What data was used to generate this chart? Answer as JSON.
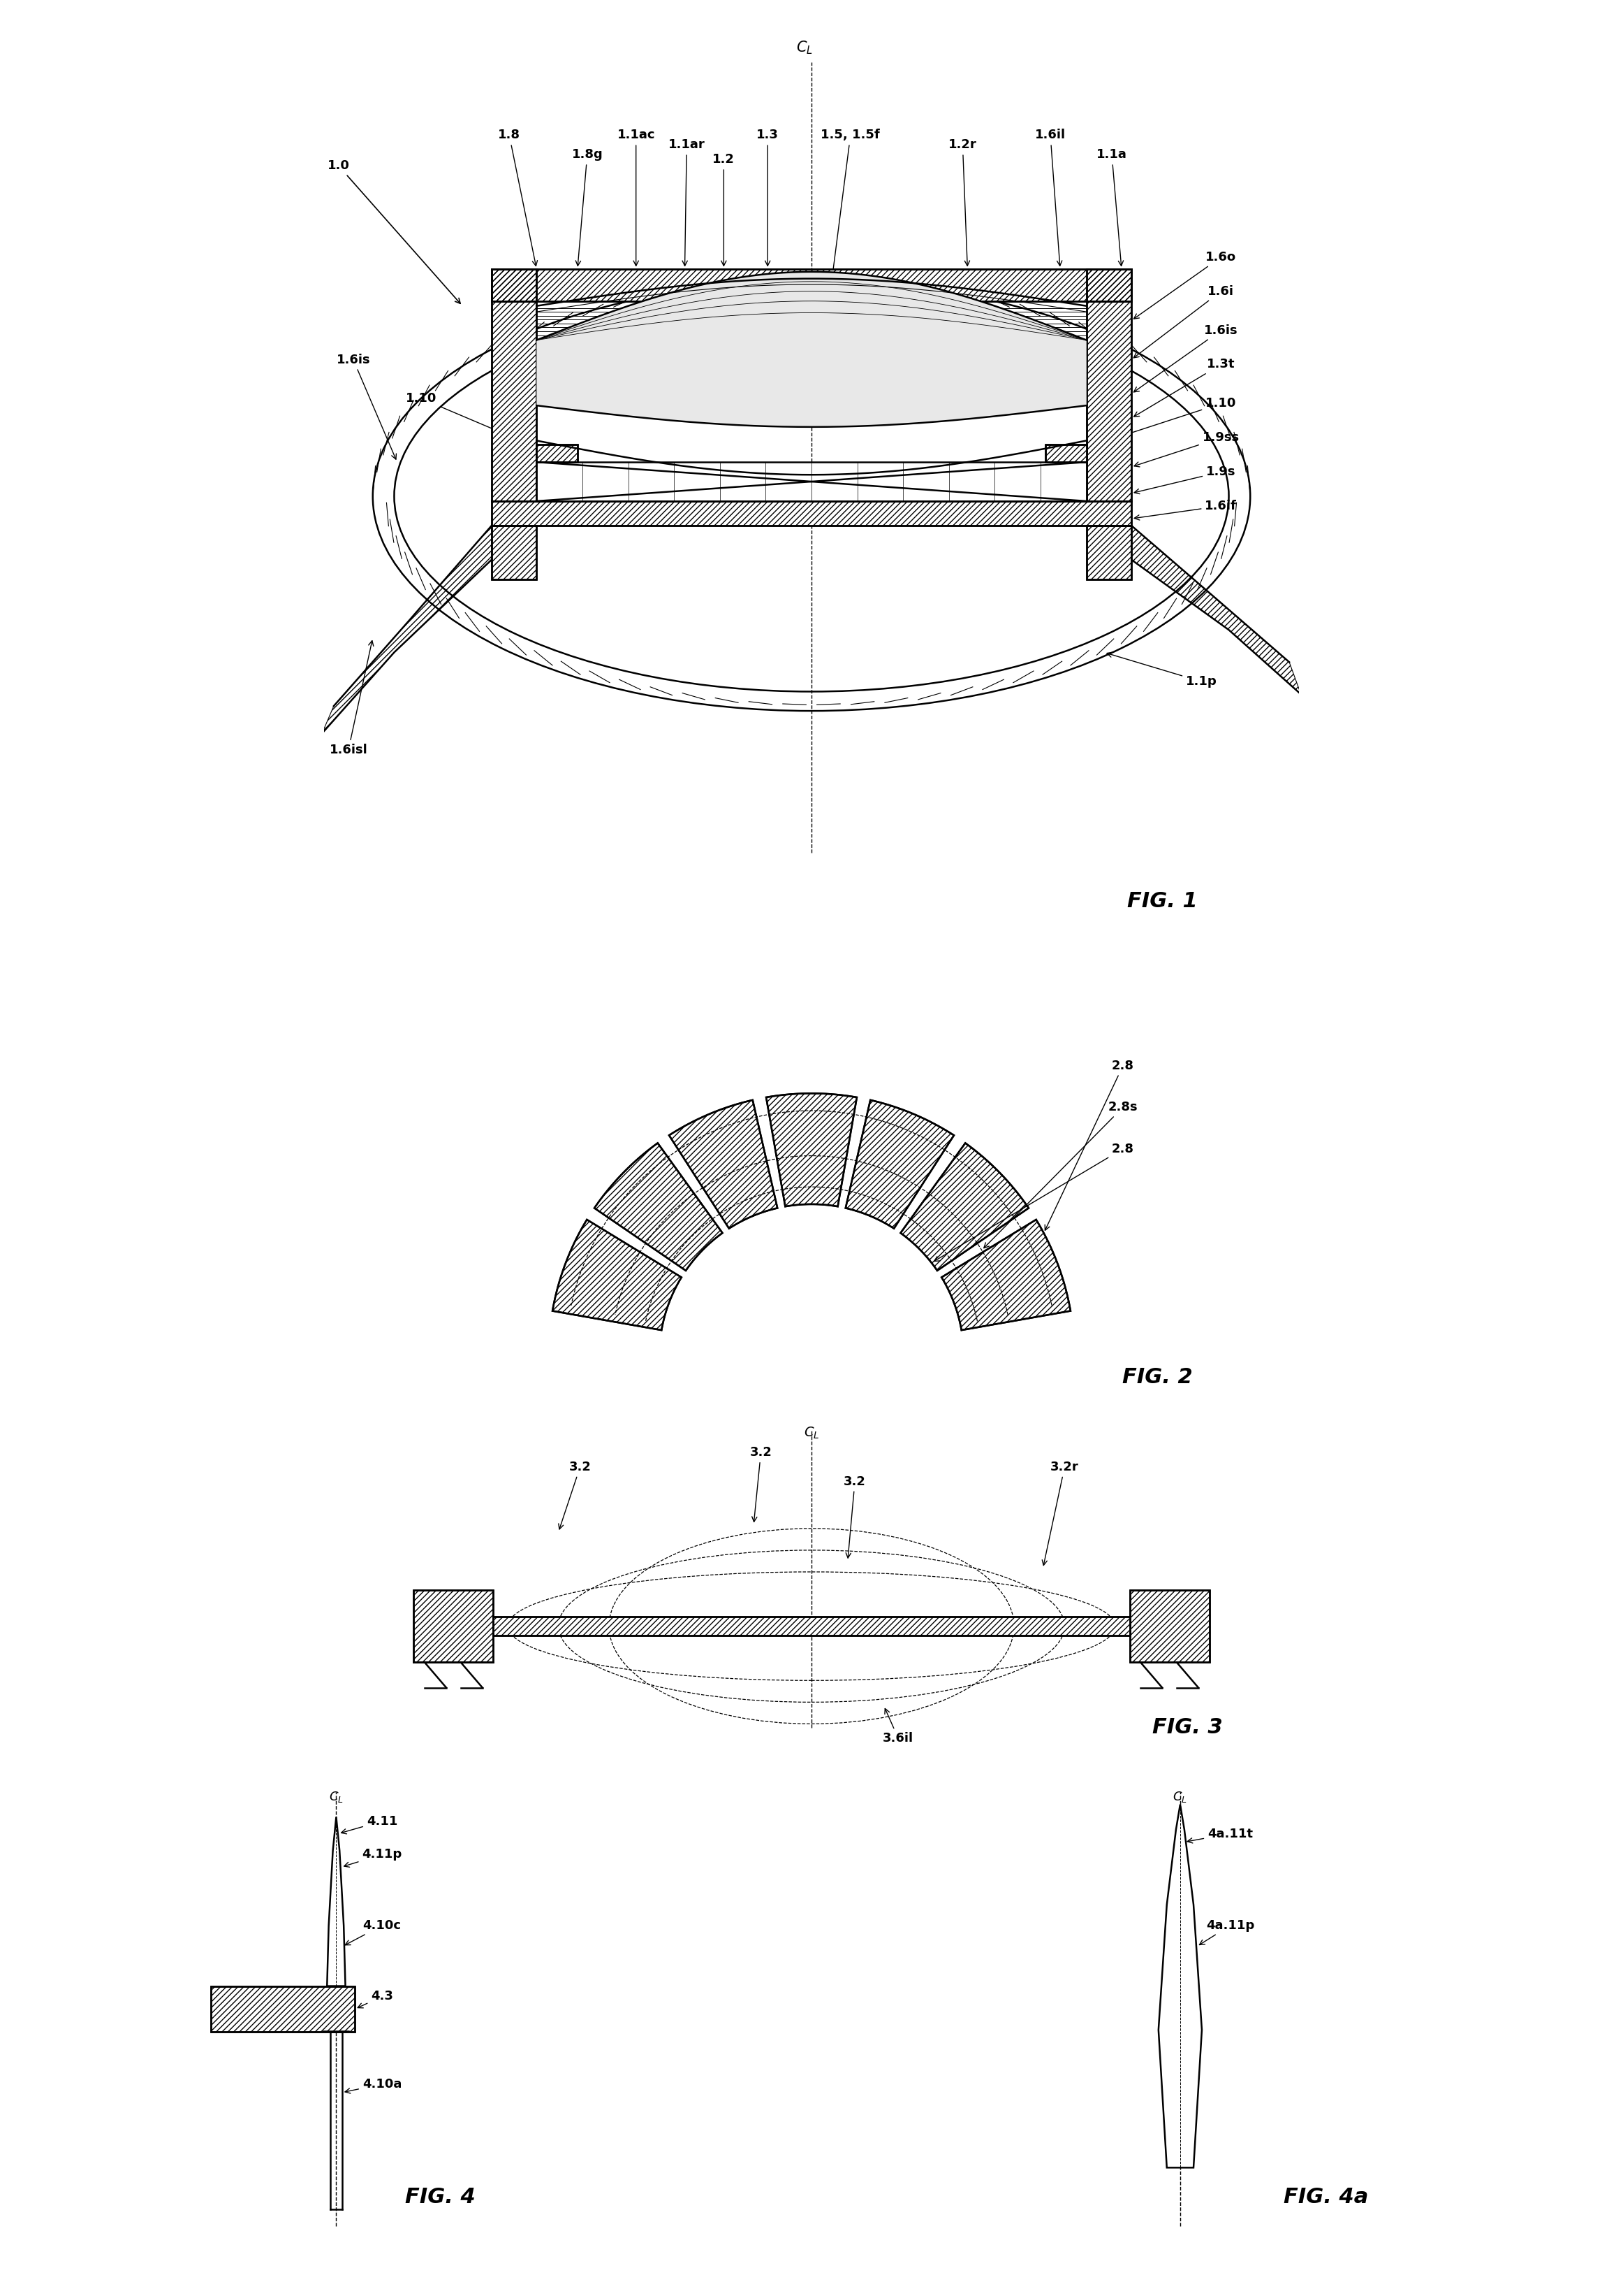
{
  "bg_color": "#ffffff",
  "line_color": "#000000",
  "fig_width": 23.24,
  "fig_height": 32.85,
  "fig1_label": "FIG. 1",
  "fig2_label": "FIG. 2",
  "fig3_label": "FIG. 3",
  "fig4_label": "FIG. 4",
  "fig4a_label": "FIG. 4a",
  "lw_main": 1.8,
  "lw_thin": 1.0,
  "lw_thick": 2.5,
  "fontsize_label": 13,
  "fontsize_fig": 22
}
